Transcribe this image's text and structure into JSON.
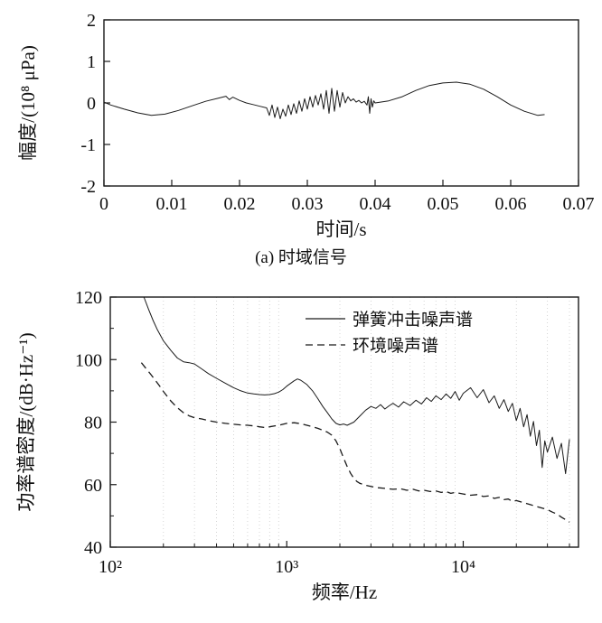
{
  "figure": {
    "caption_a": "(a) 时域信号"
  },
  "colors": {
    "line": "#1a1a1a",
    "grid": "#cccccc",
    "background": "#ffffff"
  },
  "chart_data": [
    {
      "type": "line",
      "title": "",
      "xlabel": "时间/s",
      "ylabel": "幅度/(10⁸ μPa)",
      "xlim": [
        0,
        0.07
      ],
      "ylim": [
        -2,
        2
      ],
      "xscale": "linear",
      "xticks": [
        0,
        0.01,
        0.02,
        0.03,
        0.04,
        0.05,
        0.06,
        0.07
      ],
      "xtick_labels": [
        "0",
        "0.01",
        "0.02",
        "0.03",
        "0.04",
        "0.05",
        "0.06",
        "0.07"
      ],
      "yticks": [
        -2,
        -1,
        0,
        1,
        2
      ],
      "ytick_labels": [
        "-2",
        "-1",
        "0",
        "1",
        "2"
      ],
      "grid": false,
      "series": [
        {
          "name": "时域信号",
          "style": "solid",
          "x": [
            0,
            0.001,
            0.003,
            0.005,
            0.007,
            0.009,
            0.011,
            0.013,
            0.015,
            0.017,
            0.018,
            0.0185,
            0.019,
            0.02,
            0.021,
            0.022,
            0.023,
            0.024,
            0.0244,
            0.0248,
            0.0252,
            0.0256,
            0.026,
            0.0264,
            0.0268,
            0.0272,
            0.0276,
            0.028,
            0.0284,
            0.0288,
            0.0292,
            0.0296,
            0.03,
            0.0304,
            0.0308,
            0.0312,
            0.0316,
            0.032,
            0.0324,
            0.0328,
            0.0332,
            0.0336,
            0.034,
            0.0344,
            0.0348,
            0.0352,
            0.0356,
            0.036,
            0.0364,
            0.0368,
            0.0372,
            0.0376,
            0.038,
            0.0384,
            0.0388,
            0.039,
            0.0392,
            0.0394,
            0.0396,
            0.0398,
            0.04,
            0.042,
            0.044,
            0.046,
            0.048,
            0.05,
            0.052,
            0.054,
            0.056,
            0.058,
            0.06,
            0.062,
            0.064,
            0.065
          ],
          "y": [
            0.02,
            -0.05,
            -0.15,
            -0.24,
            -0.3,
            -0.27,
            -0.18,
            -0.07,
            0.04,
            0.12,
            0.16,
            0.08,
            0.14,
            0.06,
            0,
            -0.04,
            -0.08,
            -0.12,
            -0.3,
            -0.05,
            -0.35,
            -0.1,
            -0.38,
            -0.15,
            -0.32,
            -0.05,
            -0.28,
            -0.02,
            -0.25,
            0.05,
            -0.2,
            0.1,
            -0.15,
            0.15,
            -0.1,
            0.18,
            -0.05,
            0.22,
            -0.15,
            0.3,
            -0.25,
            0.35,
            -0.2,
            0.3,
            -0.1,
            0.25,
            0,
            0.15,
            0.05,
            0.1,
            0.02,
            0.06,
            0,
            0.04,
            -0.05,
            0.15,
            -0.25,
            0.1,
            -0.1,
            0.05,
            0,
            0.05,
            0.15,
            0.3,
            0.42,
            0.48,
            0.5,
            0.45,
            0.33,
            0.15,
            -0.05,
            -0.2,
            -0.3,
            -0.28
          ]
        }
      ]
    },
    {
      "type": "line",
      "title": "",
      "xlabel": "频率/Hz",
      "ylabel": "功率谱密度/(dB·Hz⁻¹)",
      "xlim": [
        100,
        45000
      ],
      "ylim": [
        40,
        120
      ],
      "xscale": "log",
      "xticks": [
        100,
        1000,
        10000
      ],
      "xtick_labels": [
        "10²",
        "10³",
        "10⁴"
      ],
      "yticks": [
        40,
        60,
        80,
        100,
        120
      ],
      "ytick_labels": [
        "40",
        "60",
        "80",
        "100",
        "120"
      ],
      "yticks_minor": [
        50,
        70,
        90,
        110
      ],
      "grid": "dotted-vertical-minor",
      "legend": {
        "position": "top-right",
        "entries": [
          {
            "label": "弹簧冲击噪声谱",
            "style": "solid"
          },
          {
            "label": "环境噪声谱",
            "style": "dashed"
          }
        ]
      },
      "series": [
        {
          "name": "弹簧冲击噪声谱",
          "style": "solid",
          "x": [
            155,
            165,
            175,
            185,
            200,
            220,
            240,
            260,
            280,
            300,
            330,
            360,
            400,
            450,
            500,
            550,
            600,
            650,
            700,
            750,
            800,
            850,
            900,
            950,
            1000,
            1100,
            1150,
            1200,
            1300,
            1400,
            1500,
            1600,
            1700,
            1800,
            1900,
            2000,
            2100,
            2200,
            2400,
            2600,
            2800,
            3000,
            3200,
            3400,
            3600,
            3800,
            4000,
            4300,
            4600,
            5000,
            5400,
            5800,
            6200,
            6600,
            7000,
            7500,
            8000,
            8500,
            9000,
            9500,
            10000,
            11000,
            12000,
            13000,
            14000,
            15000,
            16000,
            17000,
            18000,
            19000,
            20000,
            21000,
            22000,
            23000,
            24000,
            25000,
            26000,
            27000,
            28000,
            29000,
            30000,
            32000,
            34000,
            36000,
            38000,
            40000
          ],
          "y": [
            120,
            116,
            112.5,
            109.5,
            106,
            103,
            100.5,
            99.3,
            99,
            98.6,
            97,
            95.5,
            94,
            92.4,
            91,
            90,
            89.3,
            89,
            88.8,
            88.7,
            88.8,
            89.1,
            89.6,
            90.4,
            91.5,
            93.2,
            93.8,
            93.4,
            92,
            90,
            87.5,
            85,
            83,
            81,
            79.6,
            79.1,
            79.4,
            79,
            80,
            82,
            83.8,
            85,
            84.4,
            85.6,
            84.2,
            85.2,
            86,
            84.8,
            86.5,
            85.3,
            87,
            85.8,
            87.8,
            86.6,
            88.4,
            87.2,
            89,
            87.6,
            89.8,
            87,
            89.2,
            91,
            87.8,
            90.4,
            86.2,
            88.4,
            84.4,
            87.2,
            83.4,
            86,
            80.5,
            84.4,
            78.5,
            82.4,
            75.5,
            80.2,
            72.5,
            77.4,
            65.5,
            74,
            70.4,
            75.2,
            68.4,
            73.2,
            63.5,
            74.5
          ]
        },
        {
          "name": "环境噪声谱",
          "style": "dashed",
          "x": [
            150,
            160,
            170,
            180,
            190,
            200,
            220,
            240,
            260,
            280,
            300,
            330,
            360,
            400,
            450,
            500,
            550,
            600,
            650,
            700,
            750,
            800,
            900,
            1000,
            1100,
            1200,
            1300,
            1400,
            1500,
            1600,
            1700,
            1800,
            1900,
            2000,
            2100,
            2200,
            2300,
            2400,
            2500,
            2600,
            2800,
            3000,
            3300,
            3600,
            4000,
            4400,
            4800,
            5200,
            5600,
            6000,
            6500,
            7000,
            7500,
            8000,
            8500,
            9000,
            10000,
            11000,
            12000,
            13000,
            14000,
            15000,
            16000,
            17000,
            18000,
            19000,
            20000,
            22000,
            24000,
            26000,
            28000,
            30000,
            32000,
            34000,
            36000,
            38000,
            40000
          ],
          "y": [
            99,
            97,
            95.2,
            93.4,
            91.6,
            89.8,
            86.8,
            84.6,
            83,
            82,
            81.4,
            81,
            80.5,
            80,
            79.6,
            79.3,
            79.1,
            79,
            78.8,
            78.5,
            78.3,
            78.5,
            79,
            79.6,
            79.8,
            79.5,
            79,
            78.5,
            78,
            77.4,
            76.8,
            75.8,
            74,
            71.5,
            68.5,
            65.8,
            63.6,
            62,
            61,
            60.4,
            59.8,
            59.4,
            59,
            58.8,
            58.5,
            58.7,
            58.2,
            58.5,
            58,
            58.2,
            57.8,
            58,
            57.5,
            57.8,
            57.2,
            57.5,
            57,
            56.6,
            56.8,
            56.2,
            56.4,
            55.6,
            55.9,
            55.2,
            55.4,
            54.6,
            54.9,
            54.2,
            53.6,
            53,
            52.5,
            52,
            51.2,
            50.6,
            49.6,
            48.8,
            48
          ]
        }
      ]
    }
  ]
}
